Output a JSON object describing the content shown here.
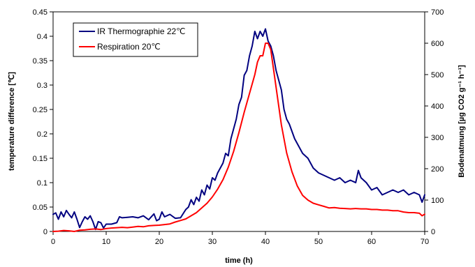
{
  "chart_data": {
    "type": "line",
    "xlabel": "time (h)",
    "ylabel_left": "temperature difference [℃]",
    "ylabel_right": "Bodenatmung [µg CO2 g⁻¹ h⁻¹]",
    "xlim": [
      0,
      70
    ],
    "ylim_left": [
      0,
      0.45
    ],
    "ylim_right": [
      0,
      700
    ],
    "x_ticks": [
      "0",
      "10",
      "20",
      "30",
      "40",
      "50",
      "60",
      "70"
    ],
    "y_left_ticks": [
      "0",
      "0.05",
      "0.1",
      "0.15",
      "0.2",
      "0.25",
      "0.3",
      "0.35",
      "0.4",
      "0.45"
    ],
    "y_right_ticks": [
      "0",
      "100",
      "200",
      "300",
      "400",
      "500",
      "600",
      "700"
    ],
    "grid": false,
    "legend_position": "top-left",
    "series": [
      {
        "name": "IR Thermographie 22℃",
        "axis": "left",
        "color": "#000080",
        "x": [
          0,
          0.5,
          1,
          1.5,
          2,
          2.5,
          3,
          3.5,
          4,
          4.5,
          5,
          5.5,
          6,
          6.5,
          7,
          7.5,
          8,
          8.5,
          9,
          9.5,
          10,
          11,
          12,
          12.5,
          13,
          14,
          15,
          16,
          17,
          18,
          19,
          19.5,
          20,
          20.5,
          21,
          22,
          23,
          24,
          25,
          25.5,
          26,
          26.5,
          27,
          27.5,
          28,
          28.5,
          29,
          29.5,
          30,
          30.5,
          31,
          31.5,
          32,
          32.5,
          33,
          33.5,
          34,
          34.5,
          35,
          35.5,
          36,
          36.5,
          37,
          37.5,
          38,
          38.5,
          39,
          39.5,
          40,
          40.5,
          41,
          41.5,
          42,
          42.5,
          43,
          43.5,
          44,
          44.5,
          45,
          45.5,
          46,
          46.5,
          47,
          47.5,
          48,
          48.5,
          49,
          49.5,
          50,
          51,
          52,
          53,
          54,
          55,
          56,
          57,
          57.5,
          58,
          59,
          60,
          61,
          62,
          63,
          64,
          65,
          66,
          67,
          68,
          69,
          69.5,
          70
        ],
        "values": [
          0.035,
          0.038,
          0.025,
          0.04,
          0.03,
          0.043,
          0.035,
          0.028,
          0.04,
          0.025,
          0.008,
          0.02,
          0.03,
          0.025,
          0.032,
          0.02,
          0.004,
          0.02,
          0.018,
          0.007,
          0.015,
          0.015,
          0.018,
          0.03,
          0.028,
          0.029,
          0.03,
          0.028,
          0.032,
          0.024,
          0.036,
          0.022,
          0.025,
          0.04,
          0.03,
          0.035,
          0.027,
          0.028,
          0.045,
          0.05,
          0.065,
          0.055,
          0.07,
          0.062,
          0.085,
          0.075,
          0.095,
          0.087,
          0.11,
          0.105,
          0.12,
          0.13,
          0.14,
          0.16,
          0.155,
          0.19,
          0.21,
          0.23,
          0.26,
          0.275,
          0.32,
          0.33,
          0.36,
          0.38,
          0.41,
          0.395,
          0.41,
          0.4,
          0.415,
          0.39,
          0.38,
          0.36,
          0.33,
          0.31,
          0.29,
          0.25,
          0.23,
          0.22,
          0.205,
          0.19,
          0.18,
          0.17,
          0.16,
          0.155,
          0.15,
          0.14,
          0.13,
          0.125,
          0.12,
          0.115,
          0.11,
          0.105,
          0.11,
          0.1,
          0.105,
          0.1,
          0.125,
          0.11,
          0.1,
          0.085,
          0.09,
          0.075,
          0.08,
          0.085,
          0.08,
          0.085,
          0.075,
          0.08,
          0.075,
          0.06,
          0.075
        ]
      },
      {
        "name": "Respiration 20℃",
        "axis": "right",
        "color": "#ff0000",
        "x": [
          0,
          1,
          2,
          3,
          4,
          5,
          6,
          7,
          8,
          9,
          10,
          11,
          12,
          13,
          14,
          15,
          16,
          17,
          18,
          19,
          20,
          21,
          22,
          23,
          24,
          25,
          26,
          27,
          28,
          29,
          30,
          31,
          32,
          33,
          34,
          35,
          36,
          37,
          38,
          38.5,
          39,
          39.5,
          40,
          40.5,
          41,
          41.5,
          42,
          42.5,
          43,
          44,
          45,
          46,
          47,
          48,
          49,
          50,
          51,
          52,
          53,
          54,
          55,
          56,
          57,
          58,
          59,
          60,
          61,
          62,
          63,
          64,
          65,
          66,
          67,
          68,
          69,
          69.5,
          70
        ],
        "values": [
          0,
          1,
          3,
          2,
          0,
          4,
          5,
          7,
          8,
          6,
          9,
          11,
          12,
          13,
          12,
          14,
          16,
          15,
          18,
          19,
          20,
          22,
          24,
          30,
          35,
          40,
          50,
          60,
          75,
          90,
          110,
          135,
          165,
          205,
          255,
          315,
          380,
          440,
          500,
          540,
          560,
          560,
          600,
          600,
          580,
          520,
          460,
          400,
          340,
          250,
          190,
          145,
          115,
          100,
          90,
          85,
          80,
          75,
          76,
          74,
          73,
          72,
          73,
          72,
          72,
          70,
          70,
          68,
          68,
          66,
          66,
          62,
          60,
          60,
          58,
          50,
          55
        ]
      }
    ]
  }
}
